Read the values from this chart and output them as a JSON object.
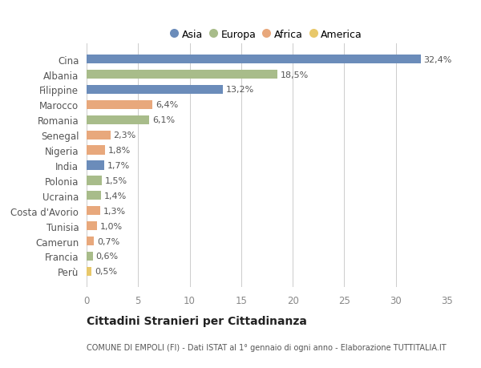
{
  "countries": [
    "Cina",
    "Albania",
    "Filippine",
    "Marocco",
    "Romania",
    "Senegal",
    "Nigeria",
    "India",
    "Polonia",
    "Ucraina",
    "Costa d'Avorio",
    "Tunisia",
    "Camerun",
    "Francia",
    "Perù"
  ],
  "values": [
    32.4,
    18.5,
    13.2,
    6.4,
    6.1,
    2.3,
    1.8,
    1.7,
    1.5,
    1.4,
    1.3,
    1.0,
    0.7,
    0.6,
    0.5
  ],
  "labels": [
    "32,4%",
    "18,5%",
    "13,2%",
    "6,4%",
    "6,1%",
    "2,3%",
    "1,8%",
    "1,7%",
    "1,5%",
    "1,4%",
    "1,3%",
    "1,0%",
    "0,7%",
    "0,6%",
    "0,5%"
  ],
  "colors": [
    "#6b8cba",
    "#a8bc8a",
    "#6b8cba",
    "#e8a87c",
    "#a8bc8a",
    "#e8a87c",
    "#e8a87c",
    "#6b8cba",
    "#a8bc8a",
    "#a8bc8a",
    "#e8a87c",
    "#e8a87c",
    "#e8a87c",
    "#a8bc8a",
    "#e8c86a"
  ],
  "continent_colors": {
    "Asia": "#6b8cba",
    "Europa": "#a8bc8a",
    "Africa": "#e8a87c",
    "America": "#e8c86a"
  },
  "title": "Cittadini Stranieri per Cittadinanza",
  "subtitle": "COMUNE DI EMPOLI (FI) - Dati ISTAT al 1° gennaio di ogni anno - Elaborazione TUTTITALIA.IT",
  "xlim": [
    0,
    35
  ],
  "xticks": [
    0,
    5,
    10,
    15,
    20,
    25,
    30,
    35
  ],
  "background_color": "#ffffff"
}
